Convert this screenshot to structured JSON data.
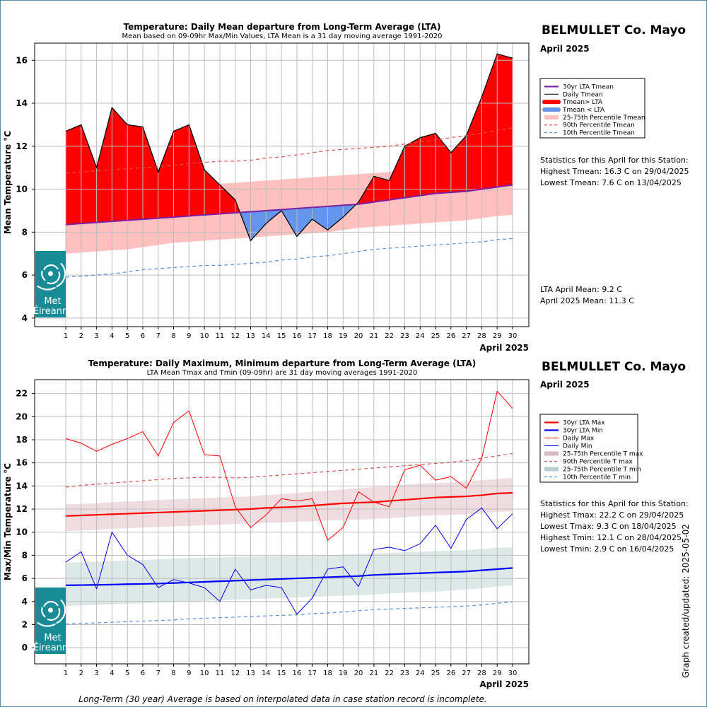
{
  "footnote": "Long-Term (30 year) Average is based on interpolated data in case station record is incomplete.",
  "side_note": "Graph created/updated:  2025-05-02",
  "logo": {
    "line1": "Met",
    "line2": "Éireann",
    "icon": "met-eireann-swirl-icon",
    "bg_color": "#178b96"
  },
  "chart_data": [
    {
      "type": "area",
      "title": "Temperature: Daily Mean departure from Long-Term Average (LTA)",
      "subtitle": "Mean based on 09-09hr Max/Min Values, LTA Mean is a 31 day moving average 1991-2020",
      "station": "BELMULLET Co. Mayo",
      "month": "April 2025",
      "xlabel": "April 2025",
      "ylabel": "Mean Temperature °C",
      "ylim": [
        3.6,
        16.8
      ],
      "yticks": [
        4,
        6,
        8,
        10,
        12,
        14,
        16
      ],
      "grid": true,
      "legend_position": "right",
      "x": [
        1,
        2,
        3,
        4,
        5,
        6,
        7,
        8,
        9,
        10,
        11,
        12,
        13,
        14,
        15,
        16,
        17,
        18,
        19,
        20,
        21,
        22,
        23,
        24,
        25,
        26,
        27,
        28,
        29,
        30
      ],
      "series": [
        {
          "name": "Daily Tmean",
          "values": [
            12.7,
            13.0,
            11.0,
            13.8,
            13.0,
            12.9,
            10.8,
            12.7,
            13.0,
            10.9,
            10.2,
            9.5,
            7.6,
            8.4,
            9.0,
            7.8,
            8.6,
            8.1,
            8.7,
            9.4,
            10.6,
            10.4,
            12.0,
            12.4,
            12.6,
            11.7,
            12.5,
            14.3,
            16.3,
            16.1
          ]
        },
        {
          "name": "30yr LTA Tmean",
          "values": [
            8.35,
            8.4,
            8.45,
            8.5,
            8.55,
            8.6,
            8.65,
            8.7,
            8.75,
            8.8,
            8.85,
            8.9,
            8.95,
            9.0,
            9.05,
            9.1,
            9.15,
            9.2,
            9.25,
            9.3,
            9.4,
            9.5,
            9.6,
            9.7,
            9.8,
            9.85,
            9.9,
            10.0,
            10.1,
            10.2
          ]
        },
        {
          "name": "25-75th Percentile Tmean",
          "lower": [
            7.0,
            7.05,
            7.1,
            7.15,
            7.2,
            7.3,
            7.4,
            7.5,
            7.55,
            7.6,
            7.65,
            7.7,
            7.75,
            7.8,
            7.85,
            7.9,
            7.95,
            8.0,
            8.1,
            8.2,
            8.25,
            8.3,
            8.35,
            8.4,
            8.45,
            8.5,
            8.55,
            8.65,
            8.75,
            8.8
          ],
          "upper": [
            9.75,
            9.8,
            9.85,
            9.9,
            9.95,
            10.0,
            10.05,
            10.1,
            10.15,
            10.2,
            10.25,
            10.3,
            10.35,
            10.4,
            10.45,
            10.5,
            10.55,
            10.6,
            10.65,
            10.7,
            10.75,
            10.8,
            10.85,
            10.9,
            10.95,
            11.0,
            11.05,
            11.15,
            11.35,
            11.4
          ]
        },
        {
          "name": "90th Percentile Tmean",
          "values": [
            10.75,
            10.8,
            10.85,
            10.9,
            10.95,
            11.0,
            11.05,
            11.1,
            11.2,
            11.25,
            11.3,
            11.3,
            11.35,
            11.45,
            11.5,
            11.6,
            11.7,
            11.8,
            11.85,
            11.9,
            11.95,
            12.0,
            12.1,
            12.2,
            12.3,
            12.4,
            12.5,
            12.6,
            12.75,
            12.85
          ]
        },
        {
          "name": "10th Percentile Tmean",
          "values": [
            5.9,
            5.95,
            6.0,
            6.05,
            6.15,
            6.25,
            6.3,
            6.35,
            6.4,
            6.45,
            6.45,
            6.5,
            6.55,
            6.6,
            6.7,
            6.75,
            6.85,
            6.9,
            7.0,
            7.1,
            7.2,
            7.25,
            7.3,
            7.35,
            7.4,
            7.45,
            7.5,
            7.55,
            7.65,
            7.7
          ]
        }
      ],
      "legend": [
        {
          "label": "30yr LTA Tmean",
          "color": "#7b1fa2",
          "style": "line-thick"
        },
        {
          "label": "Daily Tmean",
          "color": "#000000",
          "style": "line-thin"
        },
        {
          "label": "Tmean> LTA",
          "color": "#ff0000",
          "style": "line-band"
        },
        {
          "label": "Tmean < LTA",
          "color": "#6495ed",
          "style": "line-band"
        },
        {
          "label": "25-75th Percentile Tmean",
          "color": "#ffc0c0",
          "style": "band"
        },
        {
          "label": "90th Percentile Tmean",
          "color": "#d9534f",
          "style": "dashed"
        },
        {
          "label": "10th Percentile Tmean",
          "color": "#5b8fd9",
          "style": "dashed"
        }
      ],
      "colors": {
        "above": "#ff0000",
        "below": "#6495ed",
        "band": "#ffc0c0",
        "lta": "#7b1fa2"
      },
      "stats": [
        "Statistics for this April for this Station:",
        "Highest Tmean: 16.3 C on 29/04/2025",
        "Lowest Tmean: 7.6 C on 13/04/2025"
      ],
      "stats2": [
        "LTA April Mean: 9.2 C",
        "April 2025 Mean: 11.3 C"
      ]
    },
    {
      "type": "line",
      "title": "Temperature: Daily Maximum, Minimum departure from Long-Term Average (LTA)",
      "subtitle": "LTA Mean Tmax and Tmin (09-09hr) are 31 day moving averages 1991-2020",
      "station": "BELMULLET Co. Mayo",
      "month": "April 2025",
      "xlabel": "April 2025",
      "ylabel": "Max/Min Temperature °C",
      "ylim": [
        -1.4,
        23.2
      ],
      "yticks": [
        0,
        2,
        4,
        6,
        8,
        10,
        12,
        14,
        16,
        18,
        20,
        22
      ],
      "grid": true,
      "legend_position": "right",
      "x": [
        1,
        2,
        3,
        4,
        5,
        6,
        7,
        8,
        9,
        10,
        11,
        12,
        13,
        14,
        15,
        16,
        17,
        18,
        19,
        20,
        21,
        22,
        23,
        24,
        25,
        26,
        27,
        28,
        29,
        30
      ],
      "series": [
        {
          "name": "Daily Max",
          "values": [
            18.1,
            17.7,
            17.0,
            17.6,
            18.1,
            18.7,
            16.6,
            19.5,
            20.5,
            16.7,
            16.6,
            12.2,
            10.4,
            11.5,
            12.9,
            12.7,
            12.9,
            9.3,
            10.4,
            13.5,
            12.6,
            12.2,
            15.4,
            15.8,
            14.5,
            14.8,
            13.8,
            16.4,
            22.2,
            20.7
          ]
        },
        {
          "name": "Daily Min",
          "values": [
            7.4,
            8.3,
            5.1,
            10.0,
            8.0,
            7.2,
            5.2,
            5.9,
            5.6,
            5.2,
            4.0,
            6.8,
            5.0,
            5.4,
            5.2,
            2.9,
            4.3,
            6.8,
            7.0,
            5.3,
            8.5,
            8.7,
            8.4,
            9.0,
            10.6,
            8.6,
            11.1,
            12.1,
            10.3,
            11.6
          ]
        },
        {
          "name": "30yr LTA Max",
          "values": [
            11.4,
            11.45,
            11.5,
            11.55,
            11.6,
            11.65,
            11.7,
            11.75,
            11.8,
            11.85,
            11.9,
            11.95,
            12.0,
            12.1,
            12.15,
            12.2,
            12.3,
            12.4,
            12.5,
            12.55,
            12.6,
            12.7,
            12.8,
            12.9,
            13.0,
            13.05,
            13.1,
            13.2,
            13.35,
            13.4
          ]
        },
        {
          "name": "30yr LTA Min",
          "values": [
            5.4,
            5.42,
            5.44,
            5.46,
            5.5,
            5.52,
            5.55,
            5.6,
            5.65,
            5.7,
            5.75,
            5.8,
            5.85,
            5.9,
            5.95,
            6.0,
            6.05,
            6.1,
            6.15,
            6.2,
            6.3,
            6.35,
            6.4,
            6.45,
            6.5,
            6.55,
            6.6,
            6.7,
            6.8,
            6.9
          ]
        },
        {
          "name": "25-75th Percentile T max",
          "lower": [
            10.1,
            10.15,
            10.2,
            10.3,
            10.35,
            10.4,
            10.45,
            10.5,
            10.55,
            10.6,
            10.65,
            10.7,
            10.75,
            10.8,
            10.85,
            10.9,
            10.95,
            11.0,
            11.05,
            11.1,
            11.15,
            11.2,
            11.3,
            11.4,
            11.45,
            11.5,
            11.55,
            11.65,
            11.75,
            11.8
          ],
          "upper": [
            12.4,
            12.45,
            12.5,
            12.6,
            12.65,
            12.7,
            12.8,
            12.85,
            12.9,
            12.95,
            13.0,
            13.05,
            13.1,
            13.2,
            13.3,
            13.4,
            13.5,
            13.6,
            13.7,
            13.8,
            13.9,
            14.0,
            14.1,
            14.2,
            14.25,
            14.3,
            14.4,
            14.5,
            14.6,
            14.7
          ]
        },
        {
          "name": "90th Percentile T max",
          "values": [
            13.9,
            14.05,
            14.15,
            14.25,
            14.35,
            14.45,
            14.55,
            14.65,
            14.7,
            14.75,
            14.75,
            14.7,
            14.75,
            14.85,
            14.95,
            15.05,
            15.15,
            15.25,
            15.35,
            15.45,
            15.55,
            15.65,
            15.75,
            15.85,
            15.95,
            16.05,
            16.2,
            16.4,
            16.6,
            16.8
          ]
        },
        {
          "name": "25-75th Percentile T min",
          "lower": [
            3.6,
            3.65,
            3.7,
            3.75,
            3.8,
            3.85,
            3.9,
            3.95,
            4.0,
            4.05,
            4.1,
            4.15,
            4.2,
            4.25,
            4.3,
            4.35,
            4.4,
            4.45,
            4.5,
            4.55,
            4.6,
            4.7,
            4.75,
            4.8,
            4.85,
            4.95,
            5.05,
            5.15,
            5.3,
            5.4
          ],
          "upper": [
            7.35,
            7.4,
            7.45,
            7.5,
            7.55,
            7.6,
            7.65,
            7.7,
            7.75,
            7.8,
            7.82,
            7.85,
            7.88,
            7.9,
            7.92,
            7.95,
            7.98,
            8.0,
            8.05,
            8.1,
            8.15,
            8.2,
            8.25,
            8.3,
            8.35,
            8.4,
            8.45,
            8.55,
            8.65,
            8.7
          ]
        },
        {
          "name": "10th Percentile T min",
          "values": [
            2.05,
            2.1,
            2.15,
            2.2,
            2.25,
            2.3,
            2.35,
            2.4,
            2.5,
            2.55,
            2.6,
            2.65,
            2.7,
            2.75,
            2.8,
            2.85,
            2.95,
            3.0,
            3.1,
            3.2,
            3.3,
            3.35,
            3.4,
            3.45,
            3.5,
            3.55,
            3.6,
            3.7,
            3.85,
            3.95
          ]
        }
      ],
      "legend": [
        {
          "label": "30yr LTA Max",
          "color": "#ff0000",
          "style": "line-thick"
        },
        {
          "label": "30yr LTA Min",
          "color": "#0000ff",
          "style": "line-thick"
        },
        {
          "label": "Daily Max",
          "color": "#ff0000",
          "style": "line-thin"
        },
        {
          "label": "Daily Min",
          "color": "#0000ff",
          "style": "line-thin"
        },
        {
          "label": "25-75th Percentile T max",
          "color": "#d9b8c4",
          "style": "band"
        },
        {
          "label": "90th Percentile T max",
          "color": "#d9534f",
          "style": "dashed"
        },
        {
          "label": "25-75th Percentile T min",
          "color": "#b8cfcf",
          "style": "band"
        },
        {
          "label": "10th Percentile T min",
          "color": "#5b8fd9",
          "style": "dashed"
        }
      ],
      "colors": {
        "max_band": "#f0dde2",
        "min_band": "#dce9e7",
        "max": "#ff0000",
        "min": "#0000ff"
      },
      "stats": [
        "Statistics for this April for this Station:",
        "Highest Tmax: 22.2 C on 29/04/2025",
        "Lowest Tmax: 9.3 C on 18/04/2025",
        "Highest Tmin: 12.1 C on 28/04/2025",
        "Lowest Tmin: 2.9 C on 16/04/2025"
      ]
    }
  ]
}
